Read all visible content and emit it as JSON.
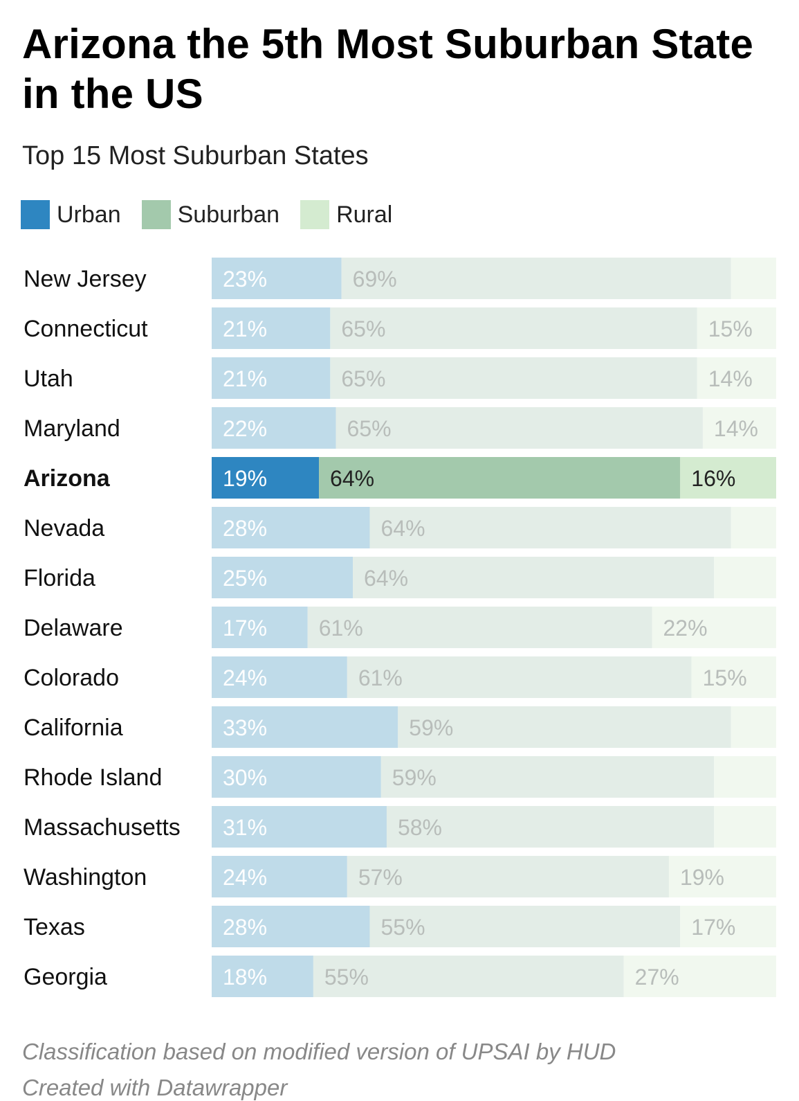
{
  "chart_data": {
    "type": "bar",
    "orientation": "horizontal",
    "stacked": true,
    "title": "Arizona the 5th Most Suburban State in the US",
    "subtitle": "Top 15 Most Suburban States",
    "categories": [
      "New Jersey",
      "Connecticut",
      "Utah",
      "Maryland",
      "Arizona",
      "Nevada",
      "Florida",
      "Delaware",
      "Colorado",
      "California",
      "Rhode Island",
      "Massachusetts",
      "Washington",
      "Texas",
      "Georgia"
    ],
    "highlight": "Arizona",
    "series": [
      {
        "name": "Urban",
        "color": "#2e86c1",
        "muted_color": "#bfdbe9",
        "values": [
          23,
          21,
          21,
          22,
          19,
          28,
          25,
          17,
          24,
          33,
          30,
          31,
          24,
          28,
          18
        ],
        "labels": [
          "23%",
          "21%",
          "21%",
          "22%",
          "19%",
          "28%",
          "25%",
          "17%",
          "24%",
          "33%",
          "30%",
          "31%",
          "24%",
          "28%",
          "18%"
        ]
      },
      {
        "name": "Suburban",
        "color": "#a3c9ac",
        "muted_color": "#e3ede7",
        "values": [
          69,
          65,
          65,
          65,
          64,
          64,
          64,
          61,
          61,
          59,
          59,
          58,
          57,
          55,
          55
        ],
        "labels": [
          "69%",
          "65%",
          "65%",
          "65%",
          "64%",
          "64%",
          "64%",
          "61%",
          "61%",
          "59%",
          "59%",
          "58%",
          "57%",
          "55%",
          "55%"
        ]
      },
      {
        "name": "Rural",
        "color": "#d4ebd0",
        "muted_color": "#f1f8ef",
        "values": [
          8,
          15,
          14,
          14,
          16,
          8,
          11,
          22,
          15,
          9,
          11,
          11,
          19,
          17,
          27
        ],
        "labels": [
          "",
          "15%",
          "14%",
          "14%",
          "16%",
          "",
          "",
          "22%",
          "15%",
          "",
          "",
          "",
          "19%",
          "17%",
          "27%"
        ]
      }
    ],
    "xlim": [
      0,
      100
    ],
    "xlabel": "",
    "ylabel": ""
  },
  "footnote": "Classification based on modified version of UPSAI by HUD",
  "source": "Created with Datawrapper"
}
